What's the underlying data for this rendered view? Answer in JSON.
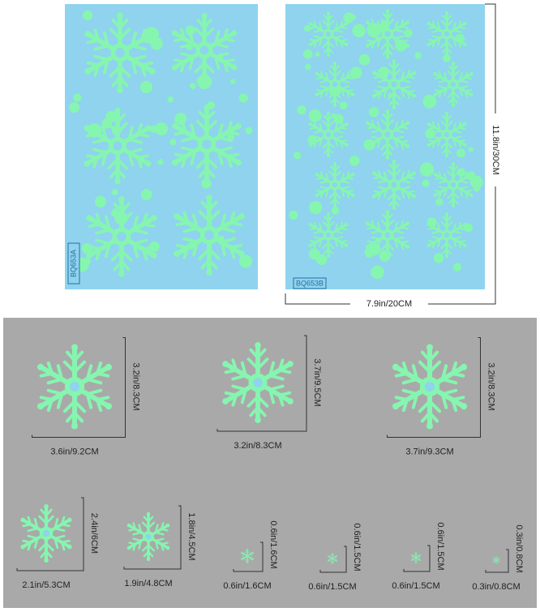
{
  "sheets": [
    {
      "label": "BQ653A"
    },
    {
      "label": "BQ653B"
    }
  ],
  "dimensions": {
    "height": "11.8in/30CM",
    "width": "7.9in/20CM"
  },
  "pieces": [
    {
      "width": "3.6in/9.2CM",
      "height": "3.2in/8.3CM"
    },
    {
      "width": "3.2in/8.3CM",
      "height": "3.7in/9.5CM"
    },
    {
      "width": "3.7in/9.3CM",
      "height": "3.2in/8.3CM"
    },
    {
      "width": "2.1in/5.3CM",
      "height": "2.4in/6CM"
    },
    {
      "width": "1.9in/4.8CM",
      "height": "1.8in/4.5CM"
    },
    {
      "width": "0.6in/1.6CM",
      "height": "0.6in/1.6CM"
    },
    {
      "width": "0.6in/1.5CM",
      "height": "0.6in/1.5CM"
    },
    {
      "width": "0.6in/1.5CM",
      "height": "0.6in/1.5CM"
    },
    {
      "width": "0.3in/0.8CM",
      "height": "0.3in/0.8CM"
    }
  ]
}
